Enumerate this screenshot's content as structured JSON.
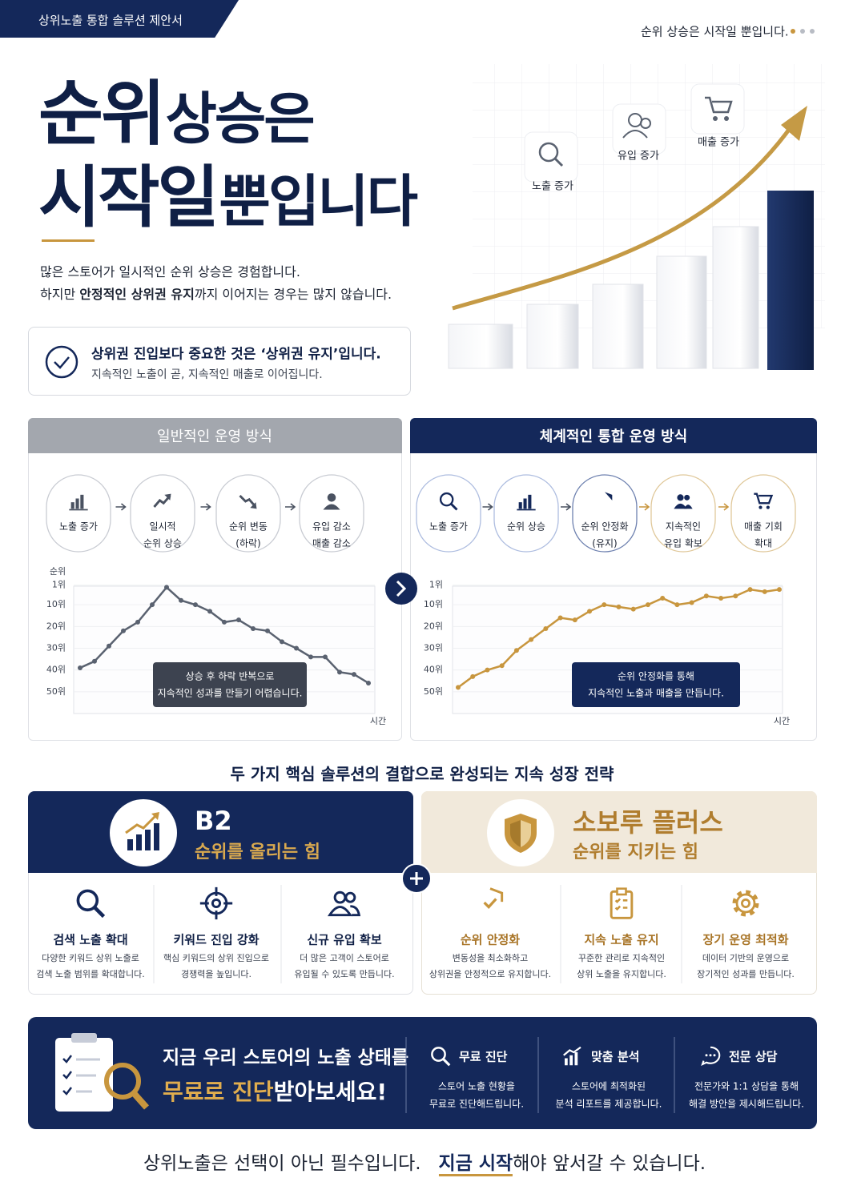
{
  "header": {
    "tag": "상위노출 통합 솔루션 제안서",
    "tagline": "순위 상승은 시작일 뿐입니다."
  },
  "hero": {
    "title": [
      [
        "순위",
        "상승은"
      ],
      [
        "시작일",
        "뿐입니다"
      ]
    ],
    "intro": {
      "line1": "많은 스토어가 일시적인 순위 상승은 경험합니다.",
      "line2": [
        "하지만 ",
        "안정적인 상위권 유지",
        "까지 이어지는 경우는 많지 않습니다."
      ]
    },
    "growth_labels": [
      "노출 증가",
      "유입 증가",
      "매출 증가"
    ]
  },
  "callout": {
    "title": "상위권 진입보다 중요한 것은 ‘상위권 유지’입니다.",
    "text": "지속적인 노출이 곧, 지속적인 매출로 이어집니다."
  },
  "comparison": {
    "left": {
      "title": "일반적인 운영 방식",
      "steps": [
        [
          "노출 증가"
        ],
        [
          "일시적",
          "순위 상승"
        ],
        [
          "순위 변동",
          "(하락)"
        ],
        [
          "유입 감소",
          "매출 감소"
        ]
      ]
    },
    "right": {
      "title": "체계적인 통합 운영 방식",
      "steps": [
        [
          "노출 증가"
        ],
        [
          "순위 상승"
        ],
        [
          "순위 안정화",
          "(유지)"
        ],
        [
          "지속적인",
          "유입 확보"
        ],
        [
          "매출 기회",
          "확대"
        ]
      ]
    }
  },
  "chart_data": [
    {
      "type": "line",
      "y_label": "순위",
      "x_label": "시간",
      "annotation": [
        "상승 후 하락 반복으로",
        "지속적인 성과를 만들기 어렵습니다."
      ],
      "color": "#5a6270",
      "values": [
        39,
        36,
        29,
        22,
        18,
        10,
        2,
        8,
        10,
        13,
        18,
        17,
        21,
        22,
        27,
        30,
        34,
        34,
        41,
        42,
        46
      ],
      "ylim": [
        60,
        0
      ],
      "yticks": [
        {
          "value": 1,
          "label": "1위"
        },
        {
          "value": 10,
          "label": "10위"
        },
        {
          "value": 20,
          "label": "20위"
        },
        {
          "value": 30,
          "label": "30위"
        },
        {
          "value": 40,
          "label": "40위"
        },
        {
          "value": 50,
          "label": "50위"
        }
      ],
      "grid": true
    },
    {
      "type": "line",
      "x_label": "시간",
      "annotation": [
        "순위 안정화를 통해",
        "지속적인 노출과 매출을 만듭니다."
      ],
      "color": "#c8963e",
      "values": [
        48,
        43,
        40,
        38,
        31,
        26,
        21,
        16,
        17,
        13,
        10,
        11,
        12,
        10,
        7,
        10,
        9,
        6,
        7,
        6,
        3,
        4,
        3
      ],
      "ylim": [
        60,
        0
      ],
      "yticks": [
        {
          "value": 1,
          "label": "1위"
        },
        {
          "value": 10,
          "label": "10위"
        },
        {
          "value": 20,
          "label": "20위"
        },
        {
          "value": 30,
          "label": "30위"
        },
        {
          "value": 40,
          "label": "40위"
        },
        {
          "value": 50,
          "label": "50위"
        }
      ],
      "grid": true
    }
  ],
  "solutions": {
    "title": "두 가지 핵심 솔루션의 결합으로 완성되는 지속 성장 전략",
    "b2": {
      "name": "B2",
      "subtitle": "순위를 올리는 힘",
      "features": [
        {
          "title": "검색 노출 확대",
          "desc": [
            "다양한 키워드 상위 노출로",
            "검색 노출 범위를 확대합니다."
          ]
        },
        {
          "title": "키워드 진입 강화",
          "desc": [
            "핵심 키워드의 상위 진입으로",
            "경쟁력을 높입니다."
          ]
        },
        {
          "title": "신규 유입 확보",
          "desc": [
            "더 많은 고객이 스토어로",
            "유입될 수 있도록 만듭니다."
          ]
        }
      ]
    },
    "soboru": {
      "name": "소보루 플러스",
      "subtitle": "순위를 지키는 힘",
      "features": [
        {
          "title": "순위 안정화",
          "desc": [
            "변동성을 최소화하고",
            "상위권을 안정적으로 유지합니다."
          ]
        },
        {
          "title": "지속 노출 유지",
          "desc": [
            "꾸준한 관리로 지속적인",
            "상위 노출을 유지합니다."
          ]
        },
        {
          "title": "장기 운영 최적화",
          "desc": [
            "데이터 기반의 운영으로",
            "장기적인 성과를 만듭니다."
          ]
        }
      ]
    }
  },
  "cta": {
    "headline": "지금 우리 스토어의 노출 상태를",
    "highlight": "무료로 진단",
    "headline_end": "받아보세요!",
    "items": [
      {
        "title": "무료 진단",
        "desc": [
          "스토어 노출 현황을",
          "무료로 진단해드립니다."
        ]
      },
      {
        "title": "맞춤 분석",
        "desc": [
          "스토어에 최적화된",
          "분석 리포트를 제공합니다."
        ]
      },
      {
        "title": "전문 상담",
        "desc": [
          "전문가와 1:1 상담을 통해",
          "해결 방안을 제시해드립니다."
        ]
      }
    ]
  },
  "footer": {
    "text": "상위노출은 선택이 아닌 필수입니다.",
    "highlight": "지금 시작",
    "text_end": "해야 앞서갈 수 있습니다."
  }
}
